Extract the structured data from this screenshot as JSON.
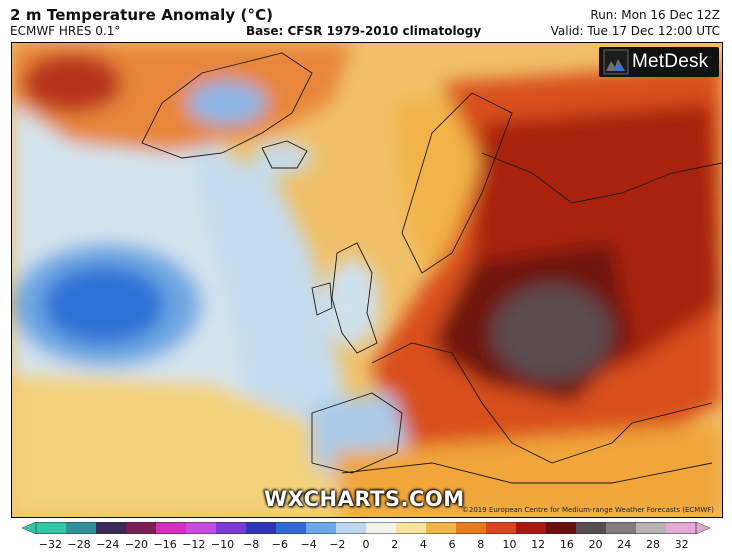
{
  "header": {
    "title": "2 m Temperature Anomaly (°C)",
    "model": "ECMWF HRES 0.1°",
    "base": "Base: CFSR 1979-2010 climatology",
    "run": "Run: Mon 16 Dec 12Z",
    "valid": "Valid: Tue 17 Dec 12:00 UTC"
  },
  "branding": {
    "logo_text": "MetDesk",
    "watermark": "WXCHARTS.COM",
    "copyright": "©2019 European Centre for Medium-range Weather Forecasts (ECMWF)"
  },
  "legend": {
    "ticks": [
      "−32",
      "−28",
      "−24",
      "−20",
      "−16",
      "−12",
      "−10",
      "−8",
      "−6",
      "−4",
      "−2",
      "0",
      "2",
      "4",
      "6",
      "8",
      "10",
      "12",
      "16",
      "20",
      "24",
      "28",
      "32"
    ],
    "colors": [
      "#2fc7a5",
      "#2f8f9a",
      "#3a2a5a",
      "#7a1e55",
      "#d62fc0",
      "#c84be0",
      "#7a3ad6",
      "#2d34b8",
      "#2f6ad8",
      "#6aa7e6",
      "#bcd8f0",
      "#f3f3ea",
      "#f7e39a",
      "#f2b54a",
      "#e87a1e",
      "#d9441a",
      "#a8190f",
      "#6a0f0c",
      "#584e52",
      "#847c80",
      "#b8b1b4",
      "#e2a8d8"
    ]
  },
  "colors": {
    "cold_dark": "#1f5fd1",
    "cold": "#6aa7e6",
    "cool": "#bcd8f0",
    "neutral": "#f3f1e6",
    "warm": "#f2b54a",
    "hot": "#e87a1e",
    "very_hot": "#c9331a",
    "extreme": "#6a0f0c",
    "peak": "#5a4a4c"
  }
}
